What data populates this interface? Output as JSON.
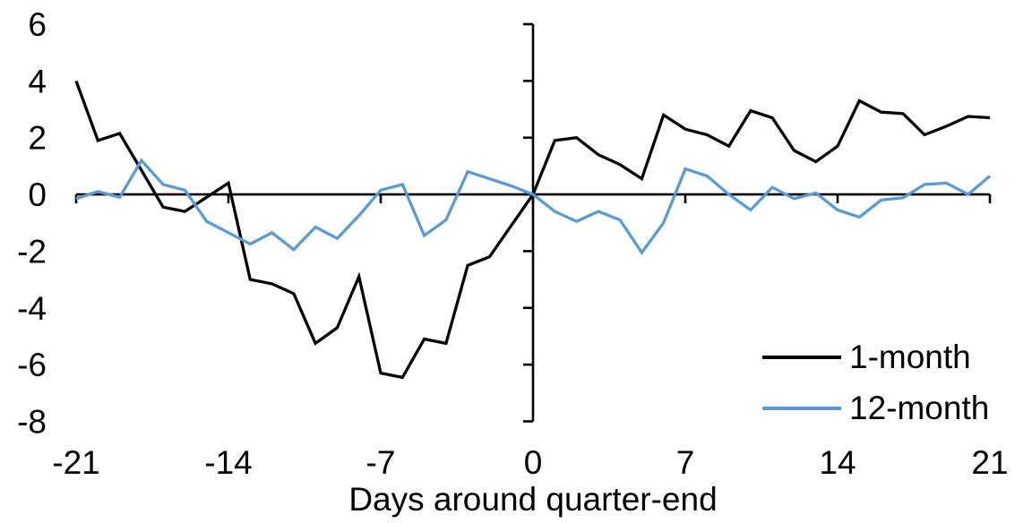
{
  "chart_data": {
    "type": "line",
    "title": "",
    "xlabel": "Days around quarter-end",
    "ylabel": "",
    "xlim": [
      -21,
      21
    ],
    "ylim": [
      -8,
      6
    ],
    "x_ticks": [
      -21,
      -14,
      -7,
      0,
      7,
      14,
      21
    ],
    "y_ticks": [
      6,
      4,
      2,
      0,
      -2,
      -4,
      -6,
      -8
    ],
    "grid": false,
    "legend_position": "inside-bottom-right",
    "axis_color": "#000000",
    "x": [
      -21,
      -20,
      -19,
      -18,
      -17,
      -16,
      -15,
      -14,
      -13,
      -12,
      -11,
      -10,
      -9,
      -8,
      -7,
      -6,
      -5,
      -4,
      -3,
      -2,
      -1,
      0,
      1,
      2,
      3,
      4,
      5,
      6,
      7,
      8,
      9,
      10,
      11,
      12,
      13,
      14,
      15,
      16,
      17,
      18,
      19,
      20,
      21
    ],
    "series": [
      {
        "name": "1-month",
        "color": "#000000",
        "values": [
          4.0,
          1.9,
          2.15,
          0.85,
          -0.45,
          -0.6,
          -0.1,
          0.4,
          -3.0,
          -3.15,
          -3.5,
          -5.25,
          -4.7,
          -2.9,
          -6.3,
          -6.45,
          -5.1,
          -5.25,
          -2.5,
          -2.2,
          -1.1,
          0.0,
          1.9,
          2.0,
          1.4,
          1.05,
          0.55,
          2.8,
          2.3,
          2.1,
          1.7,
          2.95,
          2.7,
          1.55,
          1.15,
          1.7,
          3.3,
          2.9,
          2.85,
          2.1,
          2.4,
          2.75,
          2.7
        ]
      },
      {
        "name": "12-month",
        "color": "#5B9BD5",
        "values": [
          -0.15,
          0.1,
          -0.1,
          1.2,
          0.35,
          0.15,
          -0.95,
          -1.35,
          -1.75,
          -1.35,
          -1.95,
          -1.15,
          -1.55,
          -0.75,
          0.15,
          0.35,
          -1.45,
          -0.9,
          0.8,
          0.55,
          0.3,
          0.0,
          -0.6,
          -0.95,
          -0.6,
          -0.9,
          -2.05,
          -1.0,
          0.9,
          0.65,
          0.0,
          -0.55,
          0.25,
          -0.15,
          0.05,
          -0.55,
          -0.8,
          -0.2,
          -0.12,
          0.35,
          0.4,
          0.0,
          0.65
        ]
      }
    ]
  }
}
